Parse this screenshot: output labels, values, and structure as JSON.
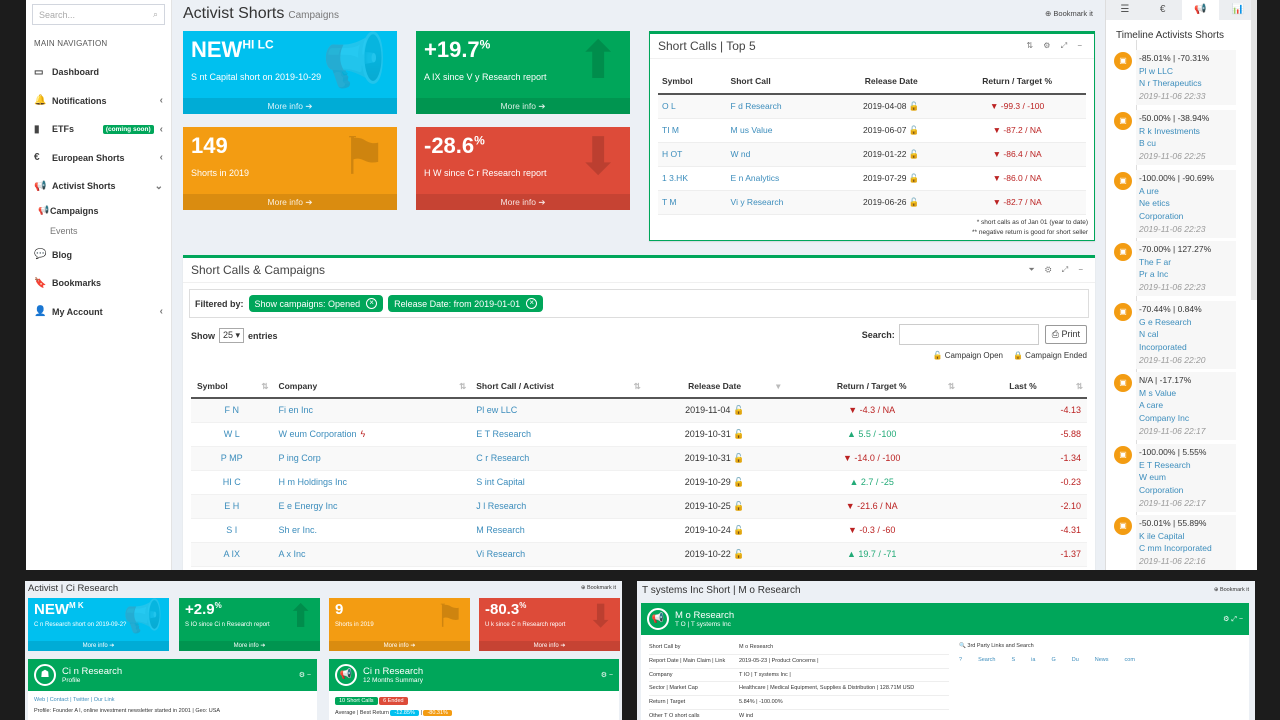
{
  "sidebar": {
    "search_placeholder": "Search...",
    "nav_header": "MAIN NAVIGATION",
    "items": [
      {
        "icon": "monitor-icon",
        "label": "Dashboard",
        "chev": ""
      },
      {
        "icon": "bell-icon",
        "label": "Notifications",
        "chev": "‹"
      },
      {
        "icon": "chart-icon",
        "label": "ETFs",
        "chev": "‹",
        "badge": "(coming soon)"
      },
      {
        "icon": "euro-icon",
        "label": "European Shorts",
        "chev": "‹"
      },
      {
        "icon": "megaphone-icon",
        "label": "Activist Shorts",
        "chev": "⌄"
      }
    ],
    "subitems": [
      {
        "label": "Campaigns"
      },
      {
        "label": "Events"
      }
    ],
    "items2": [
      {
        "icon": "comments-icon",
        "label": "Blog",
        "chev": ""
      },
      {
        "icon": "bookmark-icon",
        "label": "Bookmarks",
        "chev": ""
      },
      {
        "icon": "user-icon",
        "label": "My Account",
        "chev": "‹"
      }
    ]
  },
  "page": {
    "title": "Activist Shorts",
    "subtitle": "Campaigns",
    "bookmark": "⊕ Bookmark it"
  },
  "stat_boxes": [
    {
      "big": "NEW",
      "big_extra": "HI  LC",
      "desc": "S             nt Capital short on 2019-10-29",
      "more": "More info ➔",
      "color": "#00c0ef",
      "icon": "megaphone-icon",
      "glyph": "📢"
    },
    {
      "big": "+19.7",
      "big_extra": "%",
      "desc": "A    IX since V       y Research report",
      "more": "More info ➔",
      "color": "#00a65a",
      "icon": "arrow-up-icon",
      "glyph": "⬆"
    },
    {
      "big": "149",
      "big_extra": "",
      "desc": "Shorts in 2019",
      "more": "More info ➔",
      "color": "#f39c12",
      "icon": "flag-icon",
      "glyph": "⚑"
    },
    {
      "big": "-28.6",
      "big_extra": "%",
      "desc": "H    W since C       r Research report",
      "more": "More info ➔",
      "color": "#dd4b39",
      "icon": "arrow-down-icon",
      "glyph": "⬇"
    }
  ],
  "top5": {
    "title": "Short Calls | Top 5",
    "tools": "⇅ ⚙ ⤢ −",
    "headers": [
      "Symbol",
      "Short Call",
      "Release Date",
      "Return / Target %"
    ],
    "rows": [
      {
        "sym": "O    L",
        "call": "F        d Research",
        "date": "2019-04-08",
        "ret": "▼ -99.3 / -100"
      },
      {
        "sym": "TI      M",
        "call": "M                us Value",
        "date": "2019-06-07",
        "ret": "▼ -87.2 / NA"
      },
      {
        "sym": "H     OT",
        "call": "W                nd",
        "date": "2019-01-22",
        "ret": "▼ -86.4 / NA"
      },
      {
        "sym": "1       3.HK",
        "call": "E        n Analytics",
        "date": "2019-07-29",
        "ret": "▼ -86.0 / NA"
      },
      {
        "sym": "T      M",
        "call": "Vi      y Research",
        "date": "2019-06-26",
        "ret": "▼ -82.7 / NA"
      }
    ],
    "note1": "* short calls as of Jan 01 (year to date)",
    "note2": "** negative return is good for short seller"
  },
  "campaigns": {
    "title": "Short Calls & Campaigns",
    "tools": "⏷ ⚙ ⤢ −",
    "filtered_by": "Filtered by:",
    "chips": [
      "Show campaigns:  Opened",
      "Release Date:  from 2019-01-01"
    ],
    "show": "Show",
    "entries_value": "25",
    "entries": "entries",
    "search_label": "Search:",
    "print": "Print",
    "legend_open": "Campaign Open",
    "legend_ended": "Campaign Ended",
    "headers": [
      "Symbol",
      "Company",
      "Short Call / Activist",
      "Release Date",
      "Return / Target %",
      "Last %"
    ],
    "rows": [
      {
        "sym": "F      N",
        "co": "Fi       en Inc",
        "call": "Pl         ew LLC",
        "date": "2019-11-04",
        "ret": "▼ -4.3 / NA",
        "dir": "dn",
        "last": "-4.13",
        "flag": false
      },
      {
        "sym": "W  L",
        "co": "W                   eum Corporation",
        "call": "E   T Research",
        "date": "2019-10-31",
        "ret": "▲ 5.5 / -100",
        "dir": "up",
        "last": "-5.88",
        "flag": true
      },
      {
        "sym": "P    MP",
        "co": "P                    ing Corp",
        "call": "C         r Research",
        "date": "2019-10-31",
        "ret": "▼ -14.0 / -100",
        "dir": "dn",
        "last": "-1.34",
        "flag": false
      },
      {
        "sym": "HI    C",
        "co": "H          m Holdings Inc",
        "call": "S                 int Capital",
        "date": "2019-10-29",
        "ret": "▲ 2.7 / -25",
        "dir": "up",
        "last": "-0.23",
        "flag": false
      },
      {
        "sym": "E      H",
        "co": "E            e Energy Inc",
        "call": "J           l Research",
        "date": "2019-10-25",
        "ret": "▼ -21.6 / NA",
        "dir": "dn",
        "last": "-2.10",
        "flag": false
      },
      {
        "sym": "S      I",
        "co": "Sh           er Inc.",
        "call": "M         Research",
        "date": "2019-10-24",
        "ret": "▼ -0.3 / -60",
        "dir": "dn",
        "last": "-4.31",
        "flag": false
      },
      {
        "sym": "A    IX",
        "co": "A           x Inc",
        "call": "Vi          Research",
        "date": "2019-10-22",
        "ret": "▲ 19.7 / -71",
        "dir": "up",
        "last": "-1.37",
        "flag": false
      }
    ]
  },
  "right_panel": {
    "tabs": [
      "☰",
      "€",
      "📢",
      "📊"
    ],
    "title": "Timeline Activists Shorts",
    "items": [
      {
        "stat": "-85.01% | -70.31%",
        "l1": "Pl           w LLC",
        "l2": "N      r Therapeutics",
        "date": "2019-11-06 22:33"
      },
      {
        "stat": "-50.00% | -38.94%",
        "l1": "R         k Investments",
        "l2": "B          cu",
        "date": "2019-11-06 22:25"
      },
      {
        "stat": "-100.00% | -90.69%",
        "l1": "A               ure",
        "l2": "Ne              etics",
        "l3": "Corporation",
        "date": "2019-11-06 22:23"
      },
      {
        "stat": "-70.00% | 127.27%",
        "l1": "The F             ar",
        "l2": "Pr          a Inc",
        "date": "2019-11-06 22:23"
      },
      {
        "stat": "-70.44% | 0.84%",
        "l1": "G               e Research",
        "l2": "N                cal",
        "l3": "Incorporated",
        "date": "2019-11-06 22:20"
      },
      {
        "stat": "N/A | -17.17%",
        "l1": "M                s Value",
        "l2": "A                 care",
        "l3": "Company Inc",
        "date": "2019-11-06 22:17"
      },
      {
        "stat": "-100.00% | 5.55%",
        "l1": "E   T Research",
        "l2": "W              eum",
        "l3": "Corporation",
        "date": "2019-11-06 22:17"
      },
      {
        "stat": "-50.01% | 55.89%",
        "l1": "K             ile Capital",
        "l2": "C         mm Incorporated",
        "date": "2019-11-06 22:16"
      }
    ]
  },
  "bottom_left": {
    "title": "Activist | Ci       Research",
    "bookmark": "⊕ Bookmark it",
    "boxes": [
      {
        "big": "NEW",
        "extra": "M  K",
        "desc": "C     n Research short on 2019-09-2?",
        "more": "More info ➔",
        "color": "#00c0ef",
        "glyph": "📢"
      },
      {
        "big": "+2.9",
        "extra": "%",
        "desc": "S     IO since Ci     n Research report",
        "more": "More info ➔",
        "color": "#00a65a",
        "glyph": "⬆"
      },
      {
        "big": "9",
        "extra": "",
        "desc": "Shorts in 2019",
        "more": "More info ➔",
        "color": "#f39c12",
        "glyph": "⚑"
      },
      {
        "big": "-80.3",
        "extra": "%",
        "desc": "U    k since C     n Research report",
        "more": "More info ➔",
        "color": "#dd4b39",
        "glyph": "⬇"
      }
    ],
    "card1": {
      "title": "Ci       n Research",
      "sub": "Profile",
      "links": "Web | Contact | Twitter | Our Link",
      "profile": "Profile: Founder A              l, online investment newsletter started in 2001 | Geo: USA"
    },
    "card2": {
      "title": "Ci       n Research",
      "sub": "12 Months Summary",
      "badge1": "10 Short Calls",
      "badge2": "6 Ended",
      "avg": "Average | Best Return",
      "v1": "-12.85%",
      "v2": "-80.31%"
    }
  },
  "bottom_right": {
    "title": "T         systems Inc Short | M       o Research",
    "header_title": "M       o Research",
    "header_sub": "T    O | T           systems Inc",
    "rows": [
      {
        "k": "Short Call by",
        "v": "M       o Research"
      },
      {
        "k": "Report Date | Main Claim | Link",
        "v": "2019-05-23 | Product Concerns |"
      },
      {
        "k": "Company",
        "v": "T      IO | T               systems Inc |"
      },
      {
        "k": "Sector | Market Cap",
        "v": "Healthcare | Medical Equipment, Supplies & Distribution | 128.71M USD"
      },
      {
        "k": "Return | Target",
        "v": "5.84% | -100.00%"
      },
      {
        "k": "Other T        O short calls",
        "v": "W               ind"
      }
    ],
    "links_title": "3rd Party Links and Search",
    "links": [
      "?",
      "Search",
      "S",
      "ia",
      "G",
      "Du",
      "News",
      "com"
    ]
  }
}
